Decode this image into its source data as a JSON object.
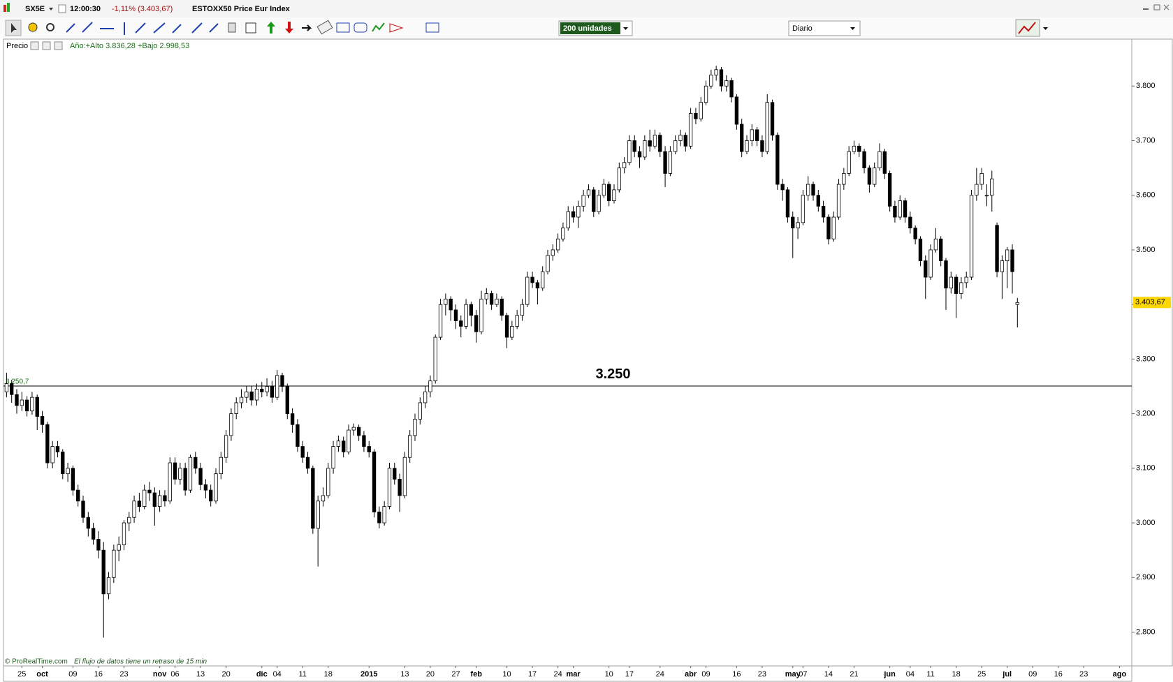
{
  "window": {
    "symbol": "SX5E",
    "time": "12:00:30",
    "change": "-1,11% (3.403,67)",
    "instrument": "ESTOXX50 Price Eur Index"
  },
  "toolbar": {
    "size_select": "200 unidades",
    "period_select": "Diario"
  },
  "panel": {
    "label": "Precio",
    "info": "Año:+Alto 3.836,28 +Bajo 2.998,53"
  },
  "footer": {
    "copyright": "© ProRealTime.com",
    "delay_note": "El flujo de datos tiene un retraso de 15 min"
  },
  "chart_data": {
    "type": "candlestick",
    "up_color": "#ffffff",
    "down_color": "#000000",
    "outline_color": "#000000",
    "ylim": [
      2738,
      3886
    ],
    "yticks": [
      {
        "value": 2800,
        "label": "2.800"
      },
      {
        "value": 2900,
        "label": "2.900"
      },
      {
        "value": 3000,
        "label": "3.000"
      },
      {
        "value": 3100,
        "label": "3.100"
      },
      {
        "value": 3200,
        "label": "3.200"
      },
      {
        "value": 3300,
        "label": "3.300"
      },
      {
        "value": 3400,
        "label": "3.400"
      },
      {
        "value": 3500,
        "label": "3.500"
      },
      {
        "value": 3600,
        "label": "3.600"
      },
      {
        "value": 3700,
        "label": "3.700"
      },
      {
        "value": 3800,
        "label": "3.800"
      }
    ],
    "hline": {
      "value": 3250.7,
      "label": "3.250",
      "tag": "3.250,7",
      "color": "#000000"
    },
    "last_price_label": "3.403,67",
    "last_price_color": "#ffd700",
    "categories": [
      null,
      null,
      null,
      "25",
      null,
      null,
      null,
      "oct",
      null,
      null,
      null,
      null,
      null,
      "09",
      null,
      null,
      null,
      null,
      "16",
      null,
      null,
      null,
      null,
      "23",
      null,
      null,
      null,
      null,
      null,
      null,
      "nov",
      null,
      null,
      "06",
      null,
      null,
      null,
      null,
      "13",
      null,
      null,
      null,
      null,
      "20",
      null,
      null,
      null,
      null,
      null,
      null,
      "dic",
      null,
      null,
      "04",
      null,
      null,
      null,
      null,
      "11",
      null,
      null,
      null,
      null,
      "18",
      null,
      null,
      null,
      null,
      null,
      null,
      null,
      "2015",
      null,
      null,
      null,
      null,
      null,
      null,
      "13",
      null,
      null,
      null,
      null,
      "20",
      null,
      null,
      null,
      null,
      "27",
      null,
      null,
      null,
      "feb",
      null,
      null,
      null,
      null,
      null,
      "10",
      null,
      null,
      null,
      null,
      "17",
      null,
      null,
      null,
      null,
      "24",
      null,
      null,
      "mar",
      null,
      null,
      null,
      null,
      null,
      null,
      "10",
      null,
      null,
      null,
      "17",
      null,
      null,
      null,
      null,
      null,
      "24",
      null,
      null,
      null,
      null,
      null,
      "abr",
      null,
      null,
      "09",
      null,
      null,
      null,
      null,
      null,
      "16",
      null,
      null,
      null,
      null,
      "23",
      null,
      null,
      null,
      null,
      null,
      "may",
      null,
      "07",
      null,
      null,
      null,
      null,
      "14",
      null,
      null,
      null,
      null,
      "21",
      null,
      null,
      null,
      null,
      null,
      null,
      "jun",
      null,
      null,
      null,
      "04",
      null,
      null,
      null,
      "11",
      null,
      null,
      null,
      null,
      "18",
      null,
      null,
      null,
      null,
      "25",
      null,
      null,
      null,
      null,
      "jul",
      null,
      null,
      null,
      null,
      "09",
      null,
      null,
      null,
      null,
      "16",
      null,
      null,
      null,
      null,
      "23",
      null,
      null,
      null,
      null,
      null,
      null,
      "ago",
      null,
      null
    ],
    "ohlc": [
      [
        3240,
        3275,
        3230,
        3255
      ],
      [
        3255,
        3262,
        3220,
        3235
      ],
      [
        3235,
        3245,
        3200,
        3215
      ],
      [
        3215,
        3240,
        3205,
        3225
      ],
      [
        3225,
        3232,
        3195,
        3205
      ],
      [
        3205,
        3240,
        3198,
        3230
      ],
      [
        3230,
        3235,
        3170,
        3195
      ],
      [
        3195,
        3205,
        3165,
        3180
      ],
      [
        3180,
        3185,
        3100,
        3110
      ],
      [
        3110,
        3150,
        3100,
        3140
      ],
      [
        3140,
        3150,
        3120,
        3130
      ],
      [
        3130,
        3135,
        3080,
        3090
      ],
      [
        3090,
        3110,
        3075,
        3100
      ],
      [
        3100,
        3105,
        3050,
        3060
      ],
      [
        3060,
        3070,
        3030,
        3040
      ],
      [
        3040,
        3050,
        3000,
        3010
      ],
      [
        3010,
        3020,
        2975,
        2990
      ],
      [
        2990,
        3000,
        2960,
        2970
      ],
      [
        2970,
        2985,
        2935,
        2950
      ],
      [
        2950,
        2965,
        2790,
        2870
      ],
      [
        2870,
        2910,
        2860,
        2900
      ],
      [
        2900,
        2960,
        2890,
        2950
      ],
      [
        2950,
        2975,
        2930,
        2960
      ],
      [
        2960,
        3005,
        2950,
        3000
      ],
      [
        3000,
        3020,
        2985,
        3010
      ],
      [
        3010,
        3050,
        3000,
        3040
      ],
      [
        3040,
        3055,
        3020,
        3030
      ],
      [
        3030,
        3070,
        3025,
        3060
      ],
      [
        3060,
        3075,
        3040,
        3055
      ],
      [
        3055,
        3065,
        2995,
        3030
      ],
      [
        3030,
        3060,
        3020,
        3050
      ],
      [
        3050,
        3060,
        3030,
        3040
      ],
      [
        3040,
        3120,
        3035,
        3110
      ],
      [
        3110,
        3120,
        3070,
        3080
      ],
      [
        3080,
        3110,
        3070,
        3100
      ],
      [
        3100,
        3110,
        3050,
        3060
      ],
      [
        3060,
        3125,
        3055,
        3120
      ],
      [
        3120,
        3130,
        3090,
        3100
      ],
      [
        3100,
        3110,
        3060,
        3070
      ],
      [
        3070,
        3080,
        3045,
        3060
      ],
      [
        3060,
        3070,
        3030,
        3040
      ],
      [
        3040,
        3100,
        3035,
        3090
      ],
      [
        3090,
        3130,
        3080,
        3120
      ],
      [
        3120,
        3170,
        3110,
        3160
      ],
      [
        3160,
        3210,
        3150,
        3200
      ],
      [
        3200,
        3230,
        3190,
        3220
      ],
      [
        3220,
        3245,
        3210,
        3230
      ],
      [
        3230,
        3250,
        3220,
        3240
      ],
      [
        3240,
        3250,
        3215,
        3225
      ],
      [
        3225,
        3255,
        3215,
        3245
      ],
      [
        3245,
        3258,
        3230,
        3240
      ],
      [
        3240,
        3265,
        3232,
        3250
      ],
      [
        3250,
        3260,
        3220,
        3230
      ],
      [
        3230,
        3280,
        3225,
        3270
      ],
      [
        3270,
        3275,
        3240,
        3250
      ],
      [
        3250,
        3255,
        3190,
        3200
      ],
      [
        3200,
        3210,
        3165,
        3180
      ],
      [
        3180,
        3190,
        3130,
        3140
      ],
      [
        3140,
        3150,
        3110,
        3120
      ],
      [
        3120,
        3130,
        3090,
        3100
      ],
      [
        3100,
        3105,
        2980,
        2990
      ],
      [
        2990,
        3050,
        2920,
        3040
      ],
      [
        3040,
        3065,
        3030,
        3050
      ],
      [
        3050,
        3110,
        3045,
        3100
      ],
      [
        3100,
        3150,
        3090,
        3140
      ],
      [
        3140,
        3160,
        3130,
        3150
      ],
      [
        3150,
        3158,
        3120,
        3130
      ],
      [
        3130,
        3180,
        3125,
        3170
      ],
      [
        3170,
        3182,
        3160,
        3175
      ],
      [
        3175,
        3180,
        3150,
        3160
      ],
      [
        3160,
        3168,
        3130,
        3140
      ],
      [
        3140,
        3150,
        3120,
        3130
      ],
      [
        3130,
        3135,
        3010,
        3020
      ],
      [
        3020,
        3030,
        2990,
        3000
      ],
      [
        3000,
        3040,
        2995,
        3030
      ],
      [
        3030,
        3110,
        3025,
        3100
      ],
      [
        3100,
        3110,
        3070,
        3080
      ],
      [
        3080,
        3090,
        3020,
        3050
      ],
      [
        3050,
        3130,
        3045,
        3120
      ],
      [
        3120,
        3170,
        3110,
        3160
      ],
      [
        3160,
        3200,
        3150,
        3190
      ],
      [
        3190,
        3230,
        3180,
        3220
      ],
      [
        3220,
        3250,
        3210,
        3240
      ],
      [
        3240,
        3270,
        3230,
        3260
      ],
      [
        3260,
        3345,
        3255,
        3340
      ],
      [
        3340,
        3410,
        3335,
        3400
      ],
      [
        3400,
        3420,
        3380,
        3410
      ],
      [
        3410,
        3415,
        3370,
        3390
      ],
      [
        3390,
        3400,
        3355,
        3370
      ],
      [
        3370,
        3380,
        3340,
        3360
      ],
      [
        3360,
        3410,
        3355,
        3400
      ],
      [
        3400,
        3405,
        3360,
        3380
      ],
      [
        3380,
        3390,
        3330,
        3350
      ],
      [
        3350,
        3425,
        3345,
        3410
      ],
      [
        3410,
        3430,
        3400,
        3420
      ],
      [
        3420,
        3425,
        3390,
        3400
      ],
      [
        3400,
        3420,
        3395,
        3410
      ],
      [
        3410,
        3415,
        3370,
        3380
      ],
      [
        3380,
        3385,
        3320,
        3340
      ],
      [
        3340,
        3370,
        3335,
        3360
      ],
      [
        3360,
        3390,
        3355,
        3380
      ],
      [
        3380,
        3410,
        3370,
        3400
      ],
      [
        3400,
        3460,
        3395,
        3450
      ],
      [
        3450,
        3460,
        3430,
        3440
      ],
      [
        3440,
        3445,
        3400,
        3430
      ],
      [
        3430,
        3470,
        3425,
        3460
      ],
      [
        3460,
        3500,
        3455,
        3490
      ],
      [
        3490,
        3510,
        3480,
        3500
      ],
      [
        3500,
        3530,
        3495,
        3520
      ],
      [
        3520,
        3550,
        3515,
        3540
      ],
      [
        3540,
        3580,
        3535,
        3570
      ],
      [
        3570,
        3580,
        3550,
        3560
      ],
      [
        3560,
        3590,
        3540,
        3580
      ],
      [
        3580,
        3610,
        3570,
        3600
      ],
      [
        3600,
        3620,
        3595,
        3610
      ],
      [
        3610,
        3615,
        3560,
        3570
      ],
      [
        3570,
        3610,
        3565,
        3600
      ],
      [
        3600,
        3630,
        3595,
        3620
      ],
      [
        3620,
        3625,
        3580,
        3590
      ],
      [
        3590,
        3620,
        3585,
        3610
      ],
      [
        3610,
        3660,
        3605,
        3650
      ],
      [
        3650,
        3670,
        3640,
        3660
      ],
      [
        3660,
        3710,
        3655,
        3700
      ],
      [
        3700,
        3710,
        3670,
        3680
      ],
      [
        3680,
        3690,
        3650,
        3670
      ],
      [
        3670,
        3710,
        3665,
        3700
      ],
      [
        3700,
        3720,
        3680,
        3690
      ],
      [
        3690,
        3720,
        3685,
        3710
      ],
      [
        3710,
        3715,
        3670,
        3680
      ],
      [
        3680,
        3690,
        3615,
        3640
      ],
      [
        3640,
        3690,
        3635,
        3680
      ],
      [
        3680,
        3710,
        3675,
        3700
      ],
      [
        3700,
        3720,
        3690,
        3710
      ],
      [
        3710,
        3715,
        3680,
        3690
      ],
      [
        3690,
        3760,
        3685,
        3750
      ],
      [
        3750,
        3760,
        3730,
        3740
      ],
      [
        3740,
        3780,
        3735,
        3770
      ],
      [
        3770,
        3810,
        3765,
        3800
      ],
      [
        3800,
        3830,
        3795,
        3820
      ],
      [
        3820,
        3837,
        3810,
        3830
      ],
      [
        3830,
        3835,
        3790,
        3800
      ],
      [
        3800,
        3820,
        3790,
        3810
      ],
      [
        3810,
        3815,
        3770,
        3780
      ],
      [
        3780,
        3785,
        3720,
        3730
      ],
      [
        3730,
        3740,
        3670,
        3680
      ],
      [
        3680,
        3710,
        3675,
        3700
      ],
      [
        3700,
        3730,
        3690,
        3720
      ],
      [
        3720,
        3725,
        3690,
        3700
      ],
      [
        3700,
        3710,
        3670,
        3680
      ],
      [
        3680,
        3785,
        3675,
        3770
      ],
      [
        3770,
        3775,
        3700,
        3710
      ],
      [
        3710,
        3715,
        3610,
        3620
      ],
      [
        3620,
        3630,
        3590,
        3610
      ],
      [
        3610,
        3615,
        3550,
        3560
      ],
      [
        3560,
        3570,
        3485,
        3540
      ],
      [
        3540,
        3560,
        3520,
        3550
      ],
      [
        3550,
        3610,
        3545,
        3600
      ],
      [
        3600,
        3635,
        3590,
        3620
      ],
      [
        3620,
        3625,
        3590,
        3600
      ],
      [
        3600,
        3610,
        3570,
        3580
      ],
      [
        3580,
        3590,
        3550,
        3560
      ],
      [
        3560,
        3565,
        3510,
        3520
      ],
      [
        3520,
        3570,
        3515,
        3560
      ],
      [
        3560,
        3630,
        3555,
        3620
      ],
      [
        3620,
        3650,
        3610,
        3640
      ],
      [
        3640,
        3690,
        3635,
        3680
      ],
      [
        3680,
        3700,
        3675,
        3690
      ],
      [
        3690,
        3695,
        3670,
        3680
      ],
      [
        3680,
        3685,
        3640,
        3650
      ],
      [
        3650,
        3655,
        3605,
        3620
      ],
      [
        3620,
        3660,
        3615,
        3650
      ],
      [
        3650,
        3695,
        3645,
        3680
      ],
      [
        3680,
        3685,
        3630,
        3640
      ],
      [
        3640,
        3645,
        3570,
        3580
      ],
      [
        3580,
        3590,
        3550,
        3560
      ],
      [
        3560,
        3600,
        3555,
        3590
      ],
      [
        3590,
        3595,
        3550,
        3560
      ],
      [
        3560,
        3570,
        3530,
        3540
      ],
      [
        3540,
        3545,
        3510,
        3520
      ],
      [
        3520,
        3525,
        3470,
        3480
      ],
      [
        3480,
        3490,
        3410,
        3450
      ],
      [
        3450,
        3510,
        3445,
        3500
      ],
      [
        3500,
        3540,
        3495,
        3520
      ],
      [
        3520,
        3525,
        3470,
        3480
      ],
      [
        3480,
        3485,
        3390,
        3430
      ],
      [
        3430,
        3460,
        3420,
        3450
      ],
      [
        3450,
        3455,
        3375,
        3420
      ],
      [
        3420,
        3450,
        3410,
        3440
      ],
      [
        3440,
        3460,
        3430,
        3450
      ],
      [
        3450,
        3610,
        3445,
        3600
      ],
      [
        3600,
        3650,
        3590,
        3620
      ],
      [
        3620,
        3650,
        3610,
        3640
      ],
      [
        3600,
        3620,
        3580,
        3600
      ],
      [
        3600,
        3645,
        3570,
        3630
      ],
      [
        3545,
        3550,
        3450,
        3460
      ],
      [
        3460,
        3490,
        3410,
        3480
      ],
      [
        3480,
        3505,
        3430,
        3500
      ],
      [
        3500,
        3510,
        3420,
        3460
      ],
      [
        3400,
        3412,
        3358,
        3403.67
      ],
      null,
      null,
      null,
      null,
      null,
      null,
      null,
      null,
      null,
      null,
      null,
      null,
      null,
      null,
      null,
      null,
      null,
      null,
      null,
      null,
      null,
      null
    ]
  }
}
